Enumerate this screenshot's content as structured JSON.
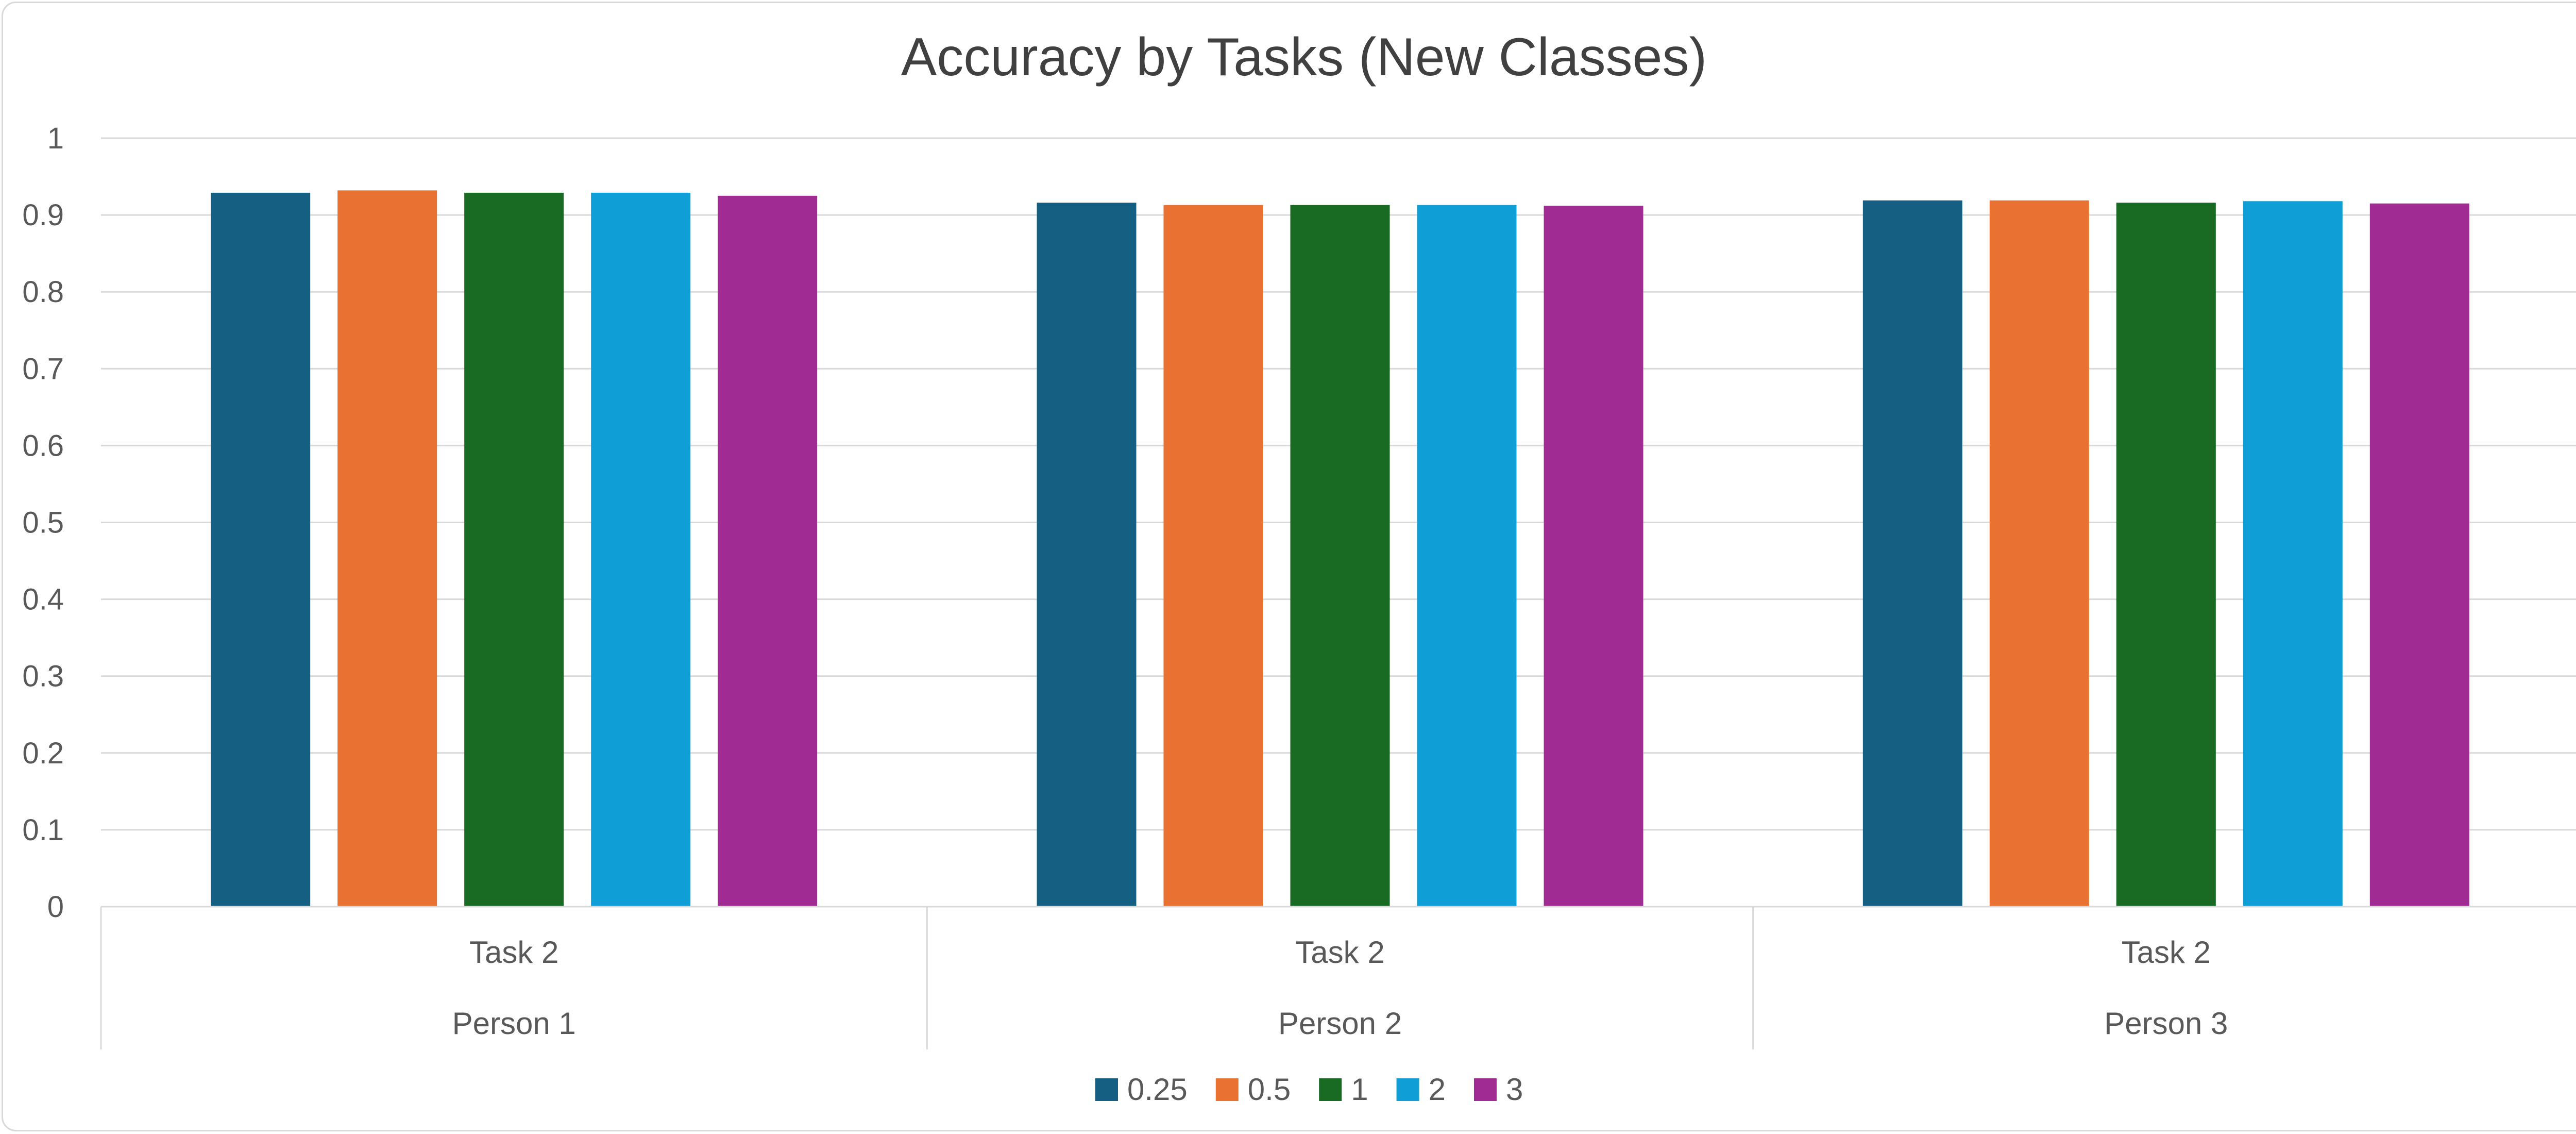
{
  "chart_data": {
    "type": "bar",
    "title": "Accuracy by Tasks (New Classes)",
    "xlabel": "",
    "ylabel": "",
    "ylim": [
      0,
      1
    ],
    "yticks": [
      "0",
      "0.1",
      "0.2",
      "0.3",
      "0.4",
      "0.5",
      "0.6",
      "0.7",
      "0.8",
      "0.9",
      "1"
    ],
    "grid": true,
    "legend_position": "bottom",
    "categories": [
      {
        "task": "Task 2",
        "person": "Person 1"
      },
      {
        "task": "Task 2",
        "person": "Person 2"
      },
      {
        "task": "Task 2",
        "person": "Person 3"
      }
    ],
    "series": [
      {
        "name": "0.25",
        "color": "#156082",
        "values": [
          0.929,
          0.916,
          0.919
        ]
      },
      {
        "name": "0.5",
        "color": "#E97132",
        "values": [
          0.932,
          0.913,
          0.919
        ]
      },
      {
        "name": "1",
        "color": "#196B24",
        "values": [
          0.929,
          0.913,
          0.916
        ]
      },
      {
        "name": "2",
        "color": "#0F9ED5",
        "values": [
          0.929,
          0.913,
          0.918
        ]
      },
      {
        "name": "3",
        "color": "#A02B93",
        "values": [
          0.925,
          0.912,
          0.915
        ]
      }
    ]
  }
}
